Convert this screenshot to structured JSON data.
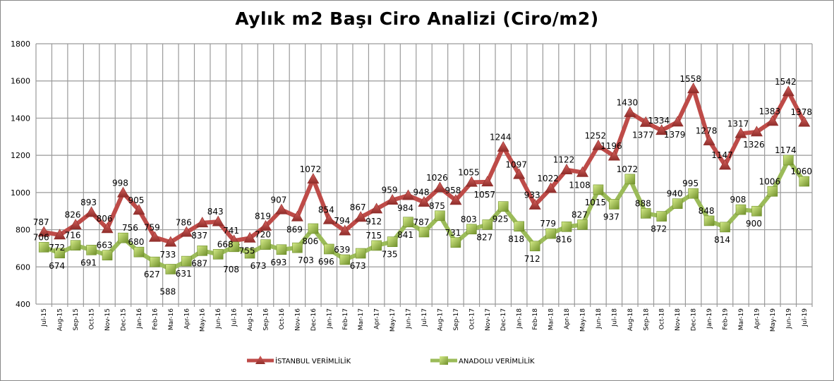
{
  "chart_data": {
    "type": "line",
    "title": "Aylık m2 Başı Ciro Analizi (Ciro/m2)",
    "xlabel": "",
    "ylabel": "",
    "ylim": [
      400,
      1800
    ],
    "yticks": [
      "400",
      "600",
      "800",
      "1000",
      "1200",
      "1400",
      "1600",
      "1800"
    ],
    "grid": true,
    "legend_position": "bottom",
    "categories": [
      "Jul-15",
      "Aug-15",
      "Sep-15",
      "Oct-15",
      "Nov-15",
      "Dec-15",
      "Jan-16",
      "Feb-16",
      "Mar-16",
      "Apr-16",
      "May-16",
      "Jun-16",
      "Jul-16",
      "Aug-16",
      "Sep-16",
      "Oct-16",
      "Nov-16",
      "Dec-16",
      "Jan-17",
      "Feb-17",
      "Mar-17",
      "Apr-17",
      "May-17",
      "Jun-17",
      "Jul-17",
      "Aug-17",
      "Sep-17",
      "Oct-17",
      "Nov-17",
      "Dec-17",
      "Jan-18",
      "Feb-18",
      "Mar-18",
      "Apr-18",
      "May-18",
      "Jun-18",
      "Jul-18",
      "Aug-18",
      "Sep-18",
      "Oct-18",
      "Nov-18",
      "Dec-18",
      "Jan-19",
      "Feb-19",
      "Mar-19",
      "Apr-19",
      "May-19",
      "Jun-19",
      "Jul-19"
    ],
    "series": [
      {
        "name": "İSTANBUL VERİMLİLİK",
        "color": "#be4b48",
        "marker": "triangle",
        "values": [
          787,
          772,
          826,
          893,
          806,
          998,
          905,
          759,
          733,
          786,
          837,
          843,
          741,
          755,
          819,
          907,
          869,
          1072,
          854,
          794,
          867,
          912,
          959,
          984,
          948,
          1026,
          958,
          1055,
          1057,
          1244,
          1097,
          933,
          1022,
          1122,
          1108,
          1252,
          1196,
          1430,
          1377,
          1334,
          1379,
          1558,
          1278,
          1147,
          1317,
          1326,
          1383,
          1542,
          1378
        ]
      },
      {
        "name": "ANADOLU VERİMLİLİK",
        "color": "#9bbb59",
        "marker": "square",
        "values": [
          706,
          674,
          716,
          691,
          663,
          756,
          680,
          627,
          588,
          631,
          687,
          668,
          708,
          673,
          720,
          693,
          703,
          806,
          696,
          639,
          673,
          715,
          735,
          841,
          787,
          875,
          731,
          803,
          827,
          925,
          818,
          712,
          779,
          816,
          827,
          1015,
          937,
          1072,
          888,
          872,
          940,
          995,
          848,
          814,
          908,
          900,
          1006,
          1174,
          1060
        ]
      }
    ]
  }
}
